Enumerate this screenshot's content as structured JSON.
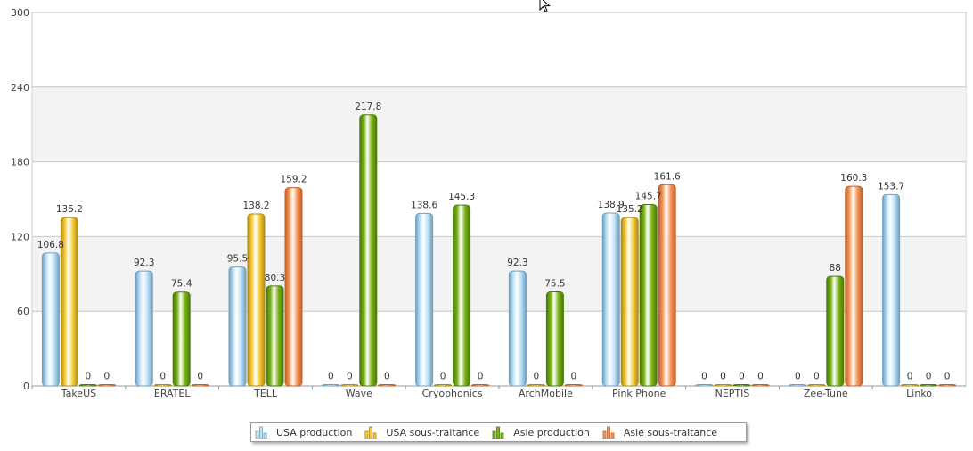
{
  "chart_data": {
    "type": "bar",
    "title": "",
    "xlabel": "",
    "ylabel": "",
    "ylim": [
      0,
      300
    ],
    "yticks": [
      0,
      60,
      120,
      180,
      240,
      300
    ],
    "grid": true,
    "legend_position": "bottom-center",
    "categories": [
      "TakeUS",
      "ERATEL",
      "TELL",
      "Wave",
      "Cryophonics",
      "ArchMobile",
      "Pink Phone",
      "NEPTIS",
      "Zee-Tune",
      "Linko"
    ],
    "series": [
      {
        "name": "USA production",
        "color": "#bfe3f7",
        "edge": "#6f9fbf",
        "values": [
          106.8,
          92.3,
          95.5,
          0,
          138.6,
          92.3,
          138.9,
          0,
          0,
          153.7
        ]
      },
      {
        "name": "USA sous-traitance",
        "color": "#f7cd3c",
        "edge": "#b08a10",
        "values": [
          135.2,
          0,
          138.2,
          0,
          0,
          0,
          135.2,
          0,
          0,
          0
        ]
      },
      {
        "name": "Asie production",
        "color": "#7cb518",
        "edge": "#4a7a08",
        "values": [
          0,
          75.4,
          80.3,
          217.8,
          145.3,
          75.5,
          145.7,
          0,
          88,
          0
        ]
      },
      {
        "name": "Asie sous-traitance",
        "color": "#f79a5c",
        "edge": "#c2602a",
        "values": [
          0,
          0,
          159.2,
          0,
          0,
          0,
          161.6,
          0,
          160.3,
          0
        ]
      }
    ]
  },
  "legend": {
    "items": [
      {
        "label": "USA production"
      },
      {
        "label": "USA sous-traitance"
      },
      {
        "label": "Asie production"
      },
      {
        "label": "Asie sous-traitance"
      }
    ]
  }
}
